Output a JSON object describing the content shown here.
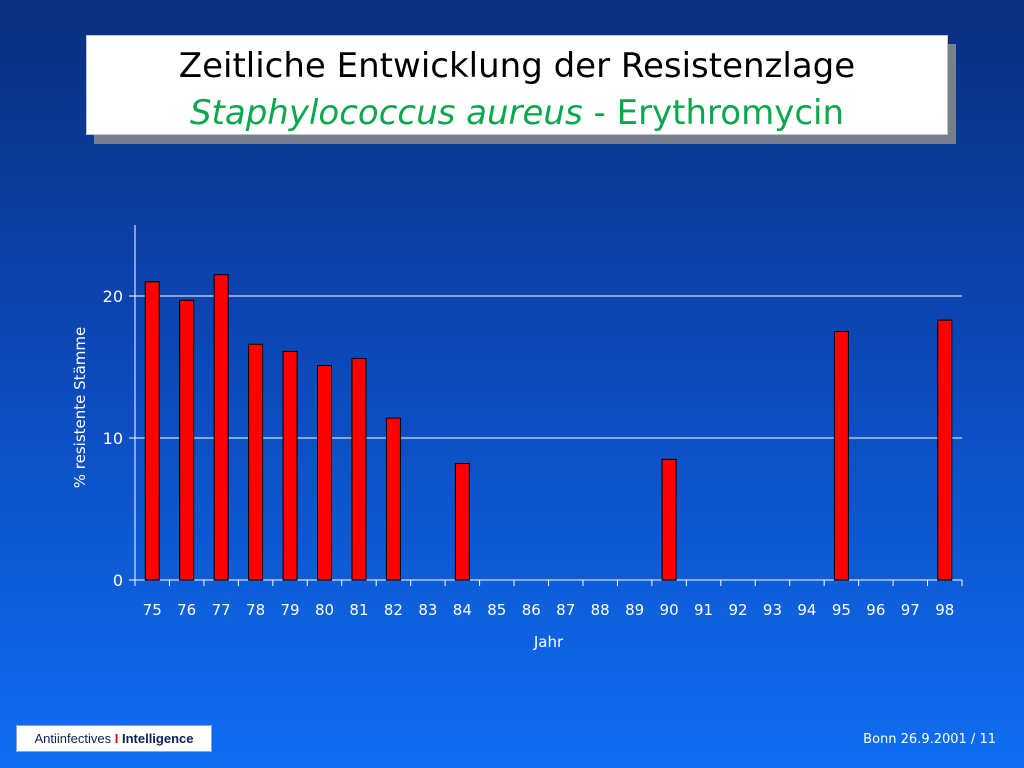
{
  "slide": {
    "title_line1": "Zeitliche Entwicklung der Resistenzlage",
    "title_organism": "Staphylococcus aureus",
    "title_separator": " - ",
    "title_drug": "Erythromycin",
    "logo_left": "Antiinfectives",
    "logo_separator": "I",
    "logo_right": "Intelligence",
    "footer": "Bonn 26.9.2001 / 11",
    "colors": {
      "title_green": "#0aa84c",
      "bar_fill": "#ff0000",
      "bar_stroke": "#000000",
      "axis": "#ffffff"
    }
  },
  "chart_data": {
    "type": "bar",
    "title": "",
    "xlabel": "Jahr",
    "ylabel": "% resistente Stämme",
    "ylim": [
      0,
      25
    ],
    "yticks": [
      0,
      10,
      20
    ],
    "grid": true,
    "categories": [
      "75",
      "76",
      "77",
      "78",
      "79",
      "80",
      "81",
      "82",
      "83",
      "84",
      "85",
      "86",
      "87",
      "88",
      "89",
      "90",
      "91",
      "92",
      "93",
      "94",
      "95",
      "96",
      "97",
      "98"
    ],
    "values": [
      21.0,
      19.7,
      21.5,
      16.6,
      16.1,
      15.1,
      15.6,
      11.4,
      null,
      8.2,
      null,
      null,
      null,
      null,
      null,
      8.5,
      null,
      null,
      null,
      null,
      17.5,
      null,
      null,
      18.3
    ]
  }
}
